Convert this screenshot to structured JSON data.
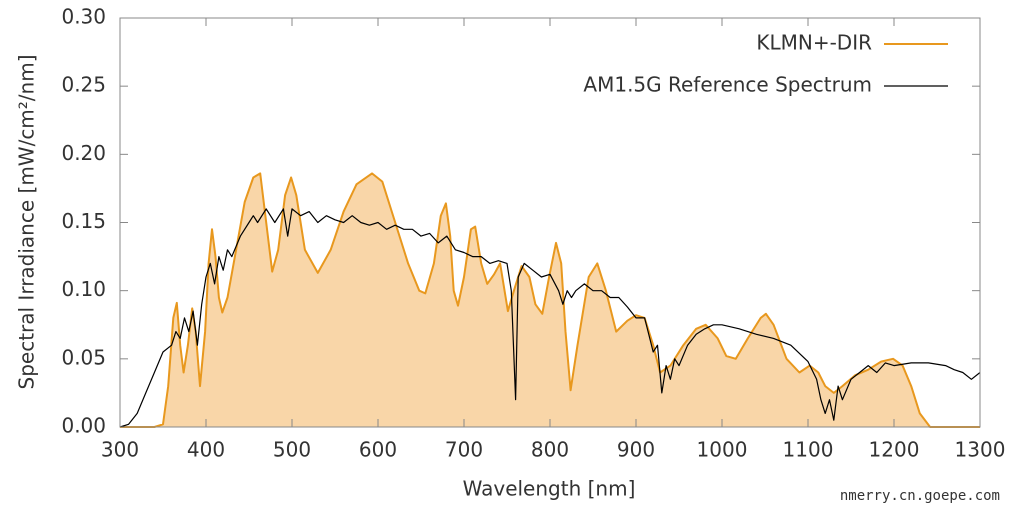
{
  "chart_data": {
    "type": "line",
    "xlabel": "Wavelength [nm]",
    "ylabel": "Spectral Irradiance [mW/cm²/nm]",
    "xlim": [
      300,
      1300
    ],
    "ylim": [
      0,
      0.3
    ],
    "xticks": [
      300,
      400,
      500,
      600,
      700,
      800,
      900,
      1000,
      1100,
      1200,
      1300
    ],
    "yticks": [
      {
        "value": 0,
        "label": "0.00"
      },
      {
        "value": 0.05,
        "label": "0.05"
      },
      {
        "value": 0.1,
        "label": "0.10"
      },
      {
        "value": 0.15,
        "label": "0.15"
      },
      {
        "value": 0.2,
        "label": "0.20"
      },
      {
        "value": 0.25,
        "label": "0.25"
      },
      {
        "value": 0.3,
        "label": "0.30"
      }
    ],
    "legend": "upper right",
    "series": [
      {
        "name": "KLMN+-DIR",
        "color": "#e8981e",
        "fill": "#f9d6a8",
        "x": [
          300,
          340,
          350,
          356,
          362,
          366,
          370,
          374,
          379,
          384,
          388,
          393,
          399,
          403,
          407,
          411,
          415,
          419,
          425,
          435,
          445,
          455,
          463,
          470,
          477,
          484,
          492,
          499,
          505,
          515,
          530,
          545,
          560,
          575,
          593,
          605,
          620,
          635,
          648,
          655,
          665,
          673,
          679,
          684,
          688,
          693,
          700,
          708,
          713,
          720,
          727,
          735,
          742,
          751,
          758,
          767,
          776,
          783,
          791,
          799,
          807,
          813,
          818,
          824,
          832,
          845,
          855,
          865,
          877,
          890,
          900,
          910,
          920,
          928,
          940,
          955,
          970,
          981,
          995,
          1005,
          1016,
          1030,
          1045,
          1051,
          1060,
          1075,
          1090,
          1102,
          1112,
          1120,
          1130,
          1140,
          1155,
          1170,
          1185,
          1199,
          1210,
          1220,
          1230,
          1242,
          1300
        ],
        "values": [
          0,
          0,
          0.002,
          0.03,
          0.08,
          0.091,
          0.06,
          0.04,
          0.06,
          0.087,
          0.07,
          0.03,
          0.07,
          0.12,
          0.145,
          0.125,
          0.095,
          0.084,
          0.095,
          0.13,
          0.165,
          0.183,
          0.186,
          0.15,
          0.114,
          0.13,
          0.17,
          0.183,
          0.17,
          0.13,
          0.113,
          0.13,
          0.158,
          0.178,
          0.186,
          0.18,
          0.15,
          0.12,
          0.1,
          0.098,
          0.12,
          0.155,
          0.164,
          0.14,
          0.1,
          0.089,
          0.11,
          0.145,
          0.147,
          0.12,
          0.105,
          0.112,
          0.12,
          0.085,
          0.1,
          0.118,
          0.11,
          0.09,
          0.083,
          0.11,
          0.135,
          0.12,
          0.07,
          0.027,
          0.06,
          0.11,
          0.12,
          0.1,
          0.07,
          0.078,
          0.082,
          0.08,
          0.06,
          0.04,
          0.045,
          0.06,
          0.072,
          0.075,
          0.065,
          0.052,
          0.05,
          0.065,
          0.08,
          0.083,
          0.075,
          0.05,
          0.04,
          0.045,
          0.04,
          0.03,
          0.025,
          0.03,
          0.038,
          0.042,
          0.048,
          0.05,
          0.045,
          0.03,
          0.01,
          0,
          0
        ]
      },
      {
        "name": "AM1.5G Reference Spectrum",
        "color": "#000000",
        "x": [
          300,
          310,
          320,
          330,
          340,
          350,
          360,
          365,
          370,
          375,
          380,
          385,
          390,
          395,
          400,
          405,
          410,
          415,
          420,
          425,
          430,
          440,
          450,
          455,
          460,
          470,
          480,
          490,
          495,
          500,
          510,
          520,
          530,
          540,
          550,
          560,
          570,
          580,
          590,
          600,
          610,
          620,
          630,
          640,
          650,
          660,
          670,
          680,
          690,
          700,
          710,
          720,
          730,
          740,
          750,
          755,
          760,
          763,
          770,
          780,
          790,
          800,
          810,
          815,
          820,
          825,
          830,
          840,
          850,
          860,
          870,
          880,
          890,
          900,
          910,
          920,
          925,
          930,
          935,
          940,
          945,
          950,
          960,
          970,
          980,
          990,
          1000,
          1020,
          1040,
          1060,
          1080,
          1100,
          1110,
          1115,
          1120,
          1125,
          1130,
          1135,
          1140,
          1150,
          1160,
          1170,
          1180,
          1190,
          1200,
          1220,
          1240,
          1260,
          1270,
          1280,
          1290,
          1300
        ],
        "values": [
          0,
          0.002,
          0.01,
          0.025,
          0.04,
          0.055,
          0.06,
          0.07,
          0.065,
          0.08,
          0.07,
          0.085,
          0.06,
          0.09,
          0.11,
          0.12,
          0.105,
          0.125,
          0.115,
          0.13,
          0.125,
          0.14,
          0.15,
          0.155,
          0.15,
          0.16,
          0.15,
          0.16,
          0.14,
          0.16,
          0.155,
          0.158,
          0.15,
          0.155,
          0.152,
          0.15,
          0.155,
          0.15,
          0.148,
          0.15,
          0.145,
          0.148,
          0.145,
          0.145,
          0.14,
          0.142,
          0.135,
          0.14,
          0.13,
          0.128,
          0.125,
          0.125,
          0.12,
          0.122,
          0.12,
          0.1,
          0.02,
          0.11,
          0.12,
          0.115,
          0.11,
          0.112,
          0.1,
          0.09,
          0.1,
          0.095,
          0.1,
          0.105,
          0.1,
          0.1,
          0.095,
          0.095,
          0.088,
          0.08,
          0.08,
          0.055,
          0.06,
          0.025,
          0.045,
          0.035,
          0.05,
          0.045,
          0.06,
          0.068,
          0.072,
          0.075,
          0.075,
          0.072,
          0.068,
          0.065,
          0.06,
          0.048,
          0.035,
          0.02,
          0.01,
          0.02,
          0.005,
          0.03,
          0.02,
          0.035,
          0.04,
          0.045,
          0.04,
          0.047,
          0.045,
          0.047,
          0.047,
          0.045,
          0.042,
          0.04,
          0.035,
          0.04
        ]
      }
    ],
    "watermark": "nmerry.cn.goepe.com"
  }
}
